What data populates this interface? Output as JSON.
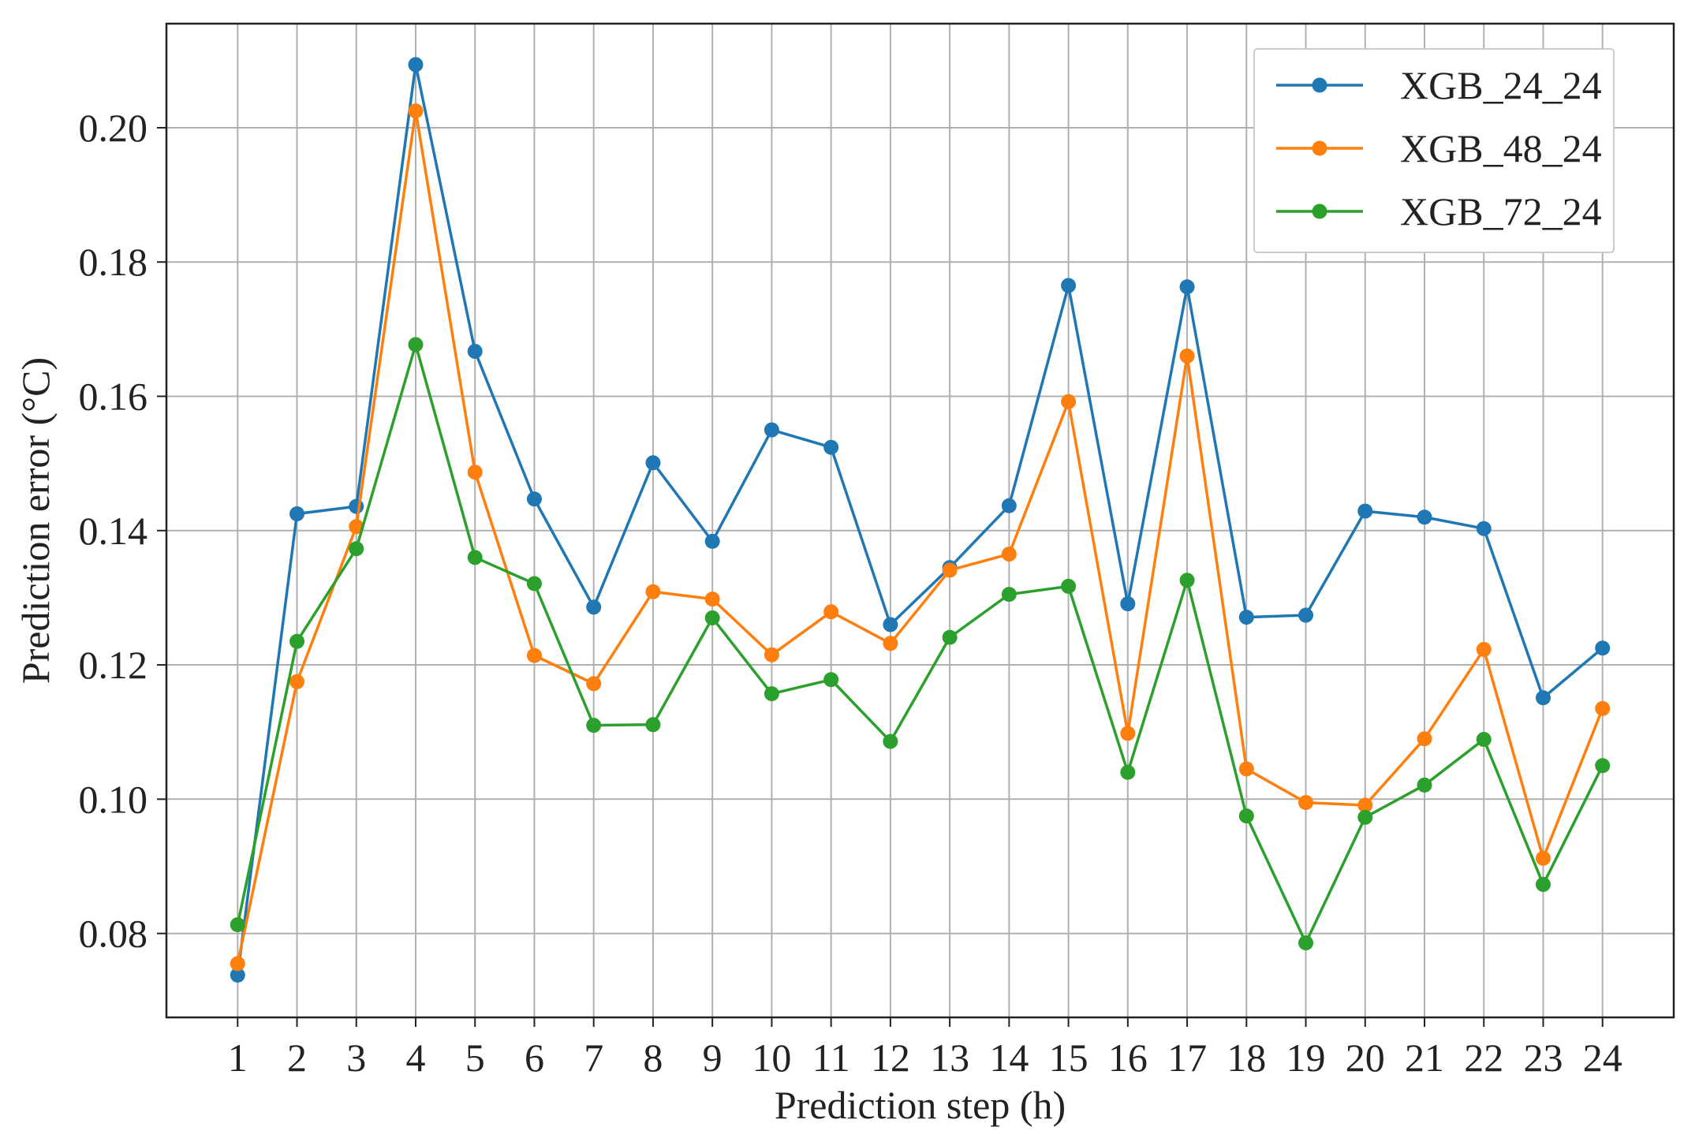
{
  "chart_data": {
    "type": "line",
    "xlabel": "Prediction step (h)",
    "ylabel": "Prediction error (°C)",
    "x": [
      1,
      2,
      3,
      4,
      5,
      6,
      7,
      8,
      9,
      10,
      11,
      12,
      13,
      14,
      15,
      16,
      17,
      18,
      19,
      20,
      21,
      22,
      23,
      24
    ],
    "xlim": [
      -0.2,
      25.2
    ],
    "ylim": [
      0.0675,
      0.2155
    ],
    "yticks": [
      0.08,
      0.1,
      0.12,
      0.14,
      0.16,
      0.18,
      0.2
    ],
    "ytick_labels": [
      "0.08",
      "0.10",
      "0.12",
      "0.14",
      "0.16",
      "0.18",
      "0.20"
    ],
    "xtick_labels": [
      "1",
      "2",
      "3",
      "4",
      "5",
      "6",
      "7",
      "8",
      "9",
      "10",
      "11",
      "12",
      "13",
      "14",
      "15",
      "16",
      "17",
      "18",
      "19",
      "20",
      "21",
      "22",
      "23",
      "24"
    ],
    "grid": true,
    "legend_position": "top-right",
    "series": [
      {
        "name": "XGB_24_24",
        "color": "#1f77b4",
        "values": [
          0.0738,
          0.1425,
          0.1436,
          0.2094,
          0.1667,
          0.1447,
          0.1286,
          0.1501,
          0.1384,
          0.155,
          0.1524,
          0.126,
          0.1345,
          0.1437,
          0.1765,
          0.1291,
          0.1763,
          0.1271,
          0.1274,
          0.1429,
          0.142,
          0.1403,
          0.1151,
          0.1225
        ]
      },
      {
        "name": "XGB_48_24",
        "color": "#ff7f0e",
        "values": [
          0.0755,
          0.1175,
          0.1406,
          0.2025,
          0.1487,
          0.1214,
          0.1172,
          0.1309,
          0.1298,
          0.1215,
          0.1279,
          0.1232,
          0.1341,
          0.1365,
          0.1592,
          0.1098,
          0.166,
          0.1045,
          0.0995,
          0.0991,
          0.109,
          0.1223,
          0.0912,
          0.1135
        ]
      },
      {
        "name": "XGB_72_24",
        "color": "#2ca02c",
        "values": [
          0.0813,
          0.1235,
          0.1373,
          0.1677,
          0.136,
          0.1321,
          0.111,
          0.1111,
          0.127,
          0.1157,
          0.1178,
          0.1086,
          0.1241,
          0.1305,
          0.1317,
          0.104,
          0.1326,
          0.0975,
          0.0786,
          0.0973,
          0.1021,
          0.1089,
          0.0873,
          0.105
        ]
      }
    ]
  }
}
